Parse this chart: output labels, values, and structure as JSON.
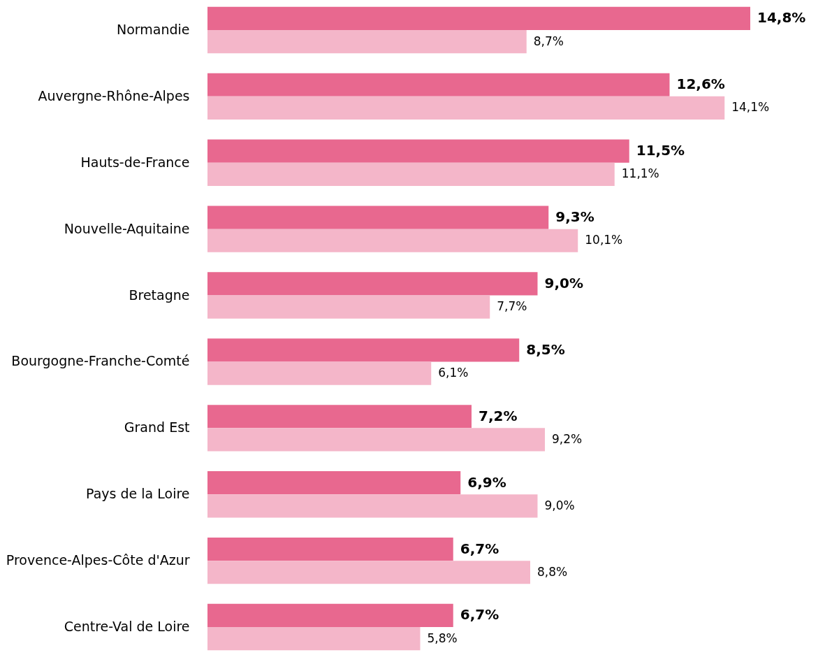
{
  "chart_data": {
    "type": "bar",
    "orientation": "horizontal",
    "categories": [
      "Normandie",
      "Auvergne-Rhône-Alpes",
      "Hauts-de-France",
      "Nouvelle-Aquitaine",
      "Bretagne",
      "Bourgogne-Franche-Comté",
      "Grand Est",
      "Pays de la Loire",
      "Provence-Alpes-Côte d'Azur",
      "Centre-Val de Loire"
    ],
    "series": [
      {
        "color": "#e8688f",
        "values": [
          14.8,
          12.6,
          11.5,
          9.3,
          9.0,
          8.5,
          7.2,
          6.9,
          6.7,
          6.7
        ],
        "value_labels": [
          "14,8%",
          "12,6%",
          "11,5%",
          "9,3%",
          "9,0%",
          "8,5%",
          "7,2%",
          "6,9%",
          "6,7%",
          "6,7%"
        ]
      },
      {
        "color": "#f4b6c9",
        "values": [
          8.7,
          14.1,
          11.1,
          10.1,
          7.7,
          6.1,
          9.2,
          9.0,
          8.8,
          5.8
        ],
        "value_labels": [
          "8,7%",
          "14,1%",
          "11,1%",
          "10,1%",
          "7,7%",
          "6,1%",
          "9,2%",
          "9,0%",
          "8,8%",
          "5,8%"
        ]
      }
    ],
    "grid": false
  }
}
